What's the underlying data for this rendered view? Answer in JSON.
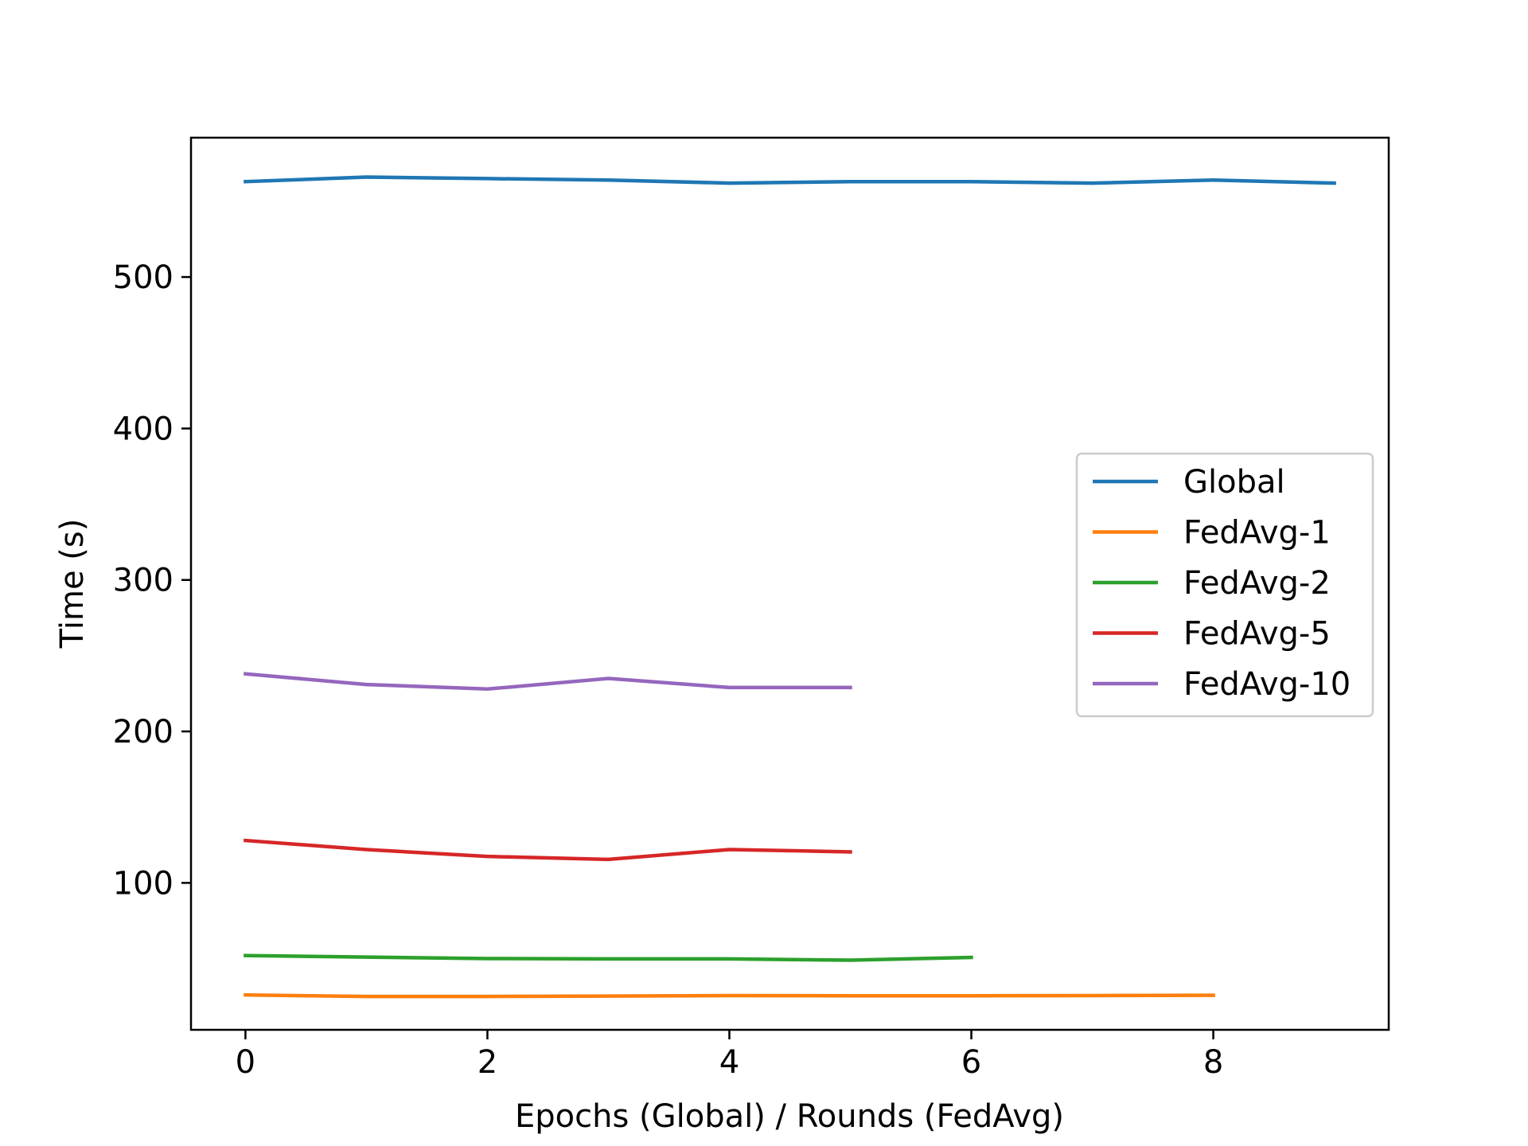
{
  "chart_data": {
    "type": "line",
    "title": "",
    "xlabel": "Epochs (Global) / Rounds (FedAvg)",
    "ylabel": "Time (s)",
    "xlim": [
      -0.45,
      9.45
    ],
    "ylim": [
      3,
      592
    ],
    "x_ticks": [
      0,
      2,
      4,
      6,
      8
    ],
    "y_ticks": [
      100,
      200,
      300,
      400,
      500
    ],
    "grid": false,
    "legend_position": "center-right",
    "series": [
      {
        "name": "Global",
        "color": "#1f77b4",
        "x": [
          0,
          1,
          2,
          3,
          4,
          5,
          6,
          7,
          8,
          9
        ],
        "y": [
          563,
          566,
          565,
          564,
          562,
          563,
          563,
          562,
          564,
          562
        ]
      },
      {
        "name": "FedAvg-1",
        "color": "#ff7f0e",
        "x": [
          0,
          1,
          2,
          3,
          4,
          5,
          6,
          7,
          8
        ],
        "y": [
          26,
          25,
          25,
          25.3,
          25.6,
          25.5,
          25.5,
          25.6,
          25.8
        ]
      },
      {
        "name": "FedAvg-2",
        "color": "#2ca02c",
        "x": [
          0,
          1,
          2,
          3,
          4,
          5,
          6
        ],
        "y": [
          52,
          51,
          50,
          49.8,
          49.8,
          49,
          50.8
        ]
      },
      {
        "name": "FedAvg-5",
        "color": "#d62728",
        "x": [
          0,
          1,
          2,
          3,
          4,
          5
        ],
        "y": [
          128,
          122,
          117.5,
          115.5,
          122,
          120.5
        ]
      },
      {
        "name": "FedAvg-10",
        "color": "#9467bd",
        "x": [
          0,
          1,
          2,
          3,
          4,
          5
        ],
        "y": [
          238,
          231,
          228,
          235,
          229,
          229
        ]
      }
    ]
  }
}
